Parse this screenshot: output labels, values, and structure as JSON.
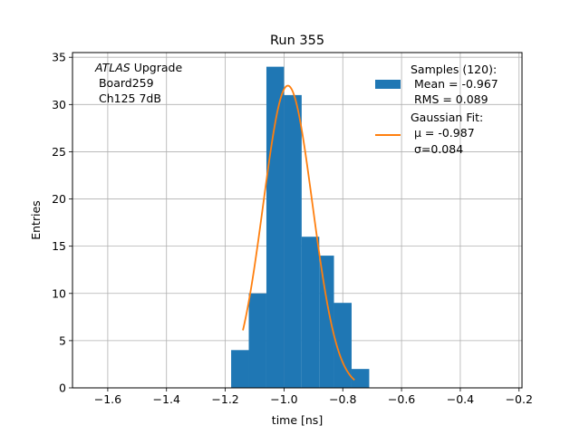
{
  "chart_data": {
    "type": "bar",
    "title": "Run 355",
    "xlabel": "time [ns]",
    "ylabel": "Entries",
    "xlim": [
      -1.72,
      -0.19
    ],
    "ylim": [
      0,
      35.5
    ],
    "xticks": [
      -1.6,
      -1.4,
      -1.2,
      -1.0,
      -0.8,
      -0.6,
      -0.4,
      -0.2
    ],
    "xtick_labels": [
      "−1.6",
      "−1.4",
      "−1.2",
      "−1.0",
      "−0.8",
      "−0.6",
      "−0.4",
      "−0.2"
    ],
    "yticks": [
      0,
      5,
      10,
      15,
      20,
      25,
      30,
      35
    ],
    "ytick_labels": [
      "0",
      "5",
      "10",
      "15",
      "20",
      "25",
      "30",
      "35"
    ],
    "grid": true,
    "legend_position": "top-right",
    "annotation": {
      "line1_italic": "ATLAS",
      "line1_rest": " Upgrade",
      "line2": " Board259",
      "line3": " Ch125 7dB"
    },
    "histogram": {
      "name": "Samples (120):",
      "label_lines": [
        "Samples (120):",
        " Mean = -0.967",
        " RMS = 0.089"
      ],
      "color": "#1f77b4",
      "bin_edges": [
        -1.18,
        -1.12,
        -1.06,
        -1.0,
        -0.94,
        -0.88,
        -0.83,
        -0.77,
        -0.71
      ],
      "counts": [
        4,
        10,
        34,
        31,
        16,
        14,
        9,
        2
      ]
    },
    "fit": {
      "name": "Gaussian Fit:",
      "label_lines": [
        "Gaussian Fit:",
        " μ = -0.987",
        " σ=0.084"
      ],
      "color": "#ff7f0e",
      "mu": -0.987,
      "sigma": 0.084,
      "amplitude": 32,
      "x_range": [
        -1.14,
        -0.76
      ]
    }
  }
}
